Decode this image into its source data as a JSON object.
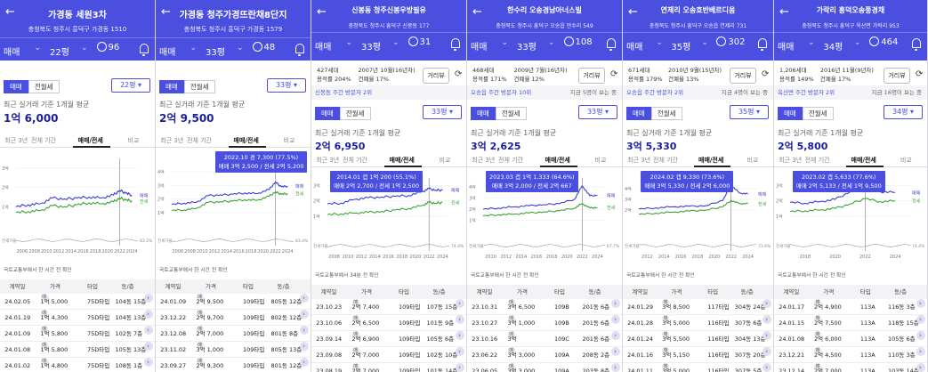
{
  "panels": [
    {
      "title": "가경동 세원3차",
      "address": "충청북도 청주시 흥덕구 가경동 1510",
      "trade_type": "매매",
      "size": "22평",
      "comments": "96",
      "info1": "",
      "info2": "",
      "visit_text": "",
      "toggle_sale": "매매",
      "toggle_jeonse": "전월세",
      "pyeong_select": "22평",
      "price_label": "최근 실거래 기준 1개월 평균",
      "avg_price": "1억 6,000",
      "tabs": [
        "최근 3년",
        "전체 기간",
        "매매/전세",
        "비교"
      ],
      "tooltip_1": "",
      "tooltip_2": "",
      "source_note": "국토교통부에서 한 시간 전 확인",
      "table_header": [
        "계약일",
        "가격",
        "타입",
        "동/층"
      ],
      "rows": [
        [
          "24.02.05",
          "1억 5,000",
          "75D타입",
          "104동 15층"
        ],
        [
          "24.01.19",
          "1억 4,300",
          "75D타입",
          "104동 13층"
        ],
        [
          "24.01.09",
          "1억 5,800",
          "75D타입",
          "102동 7층"
        ],
        [
          "24.01.08",
          "1억 5,800",
          "75D타입",
          "105동 13층"
        ],
        [
          "24.01.02",
          "1억 4,800",
          "75D타입",
          "108동 1층"
        ]
      ],
      "y_ticks": [
        "3억",
        "2억",
        "1억"
      ],
      "x_ticks": [
        "2006",
        "2008",
        "2010",
        "2012",
        "2014",
        "2016",
        "2018",
        "2020",
        "2022",
        "2024"
      ],
      "chart_data": {
        "type": "line",
        "x": [
          2005,
          2007,
          2009,
          2011,
          2013,
          2015,
          2017,
          2019,
          2021,
          2022,
          2023,
          2024
        ],
        "series": [
          {
            "name": "매매",
            "values": [
              1.0,
              1.1,
              1.15,
              1.45,
              1.4,
              1.45,
              1.5,
              1.45,
              1.6,
              1.85,
              1.7,
              1.6
            ]
          },
          {
            "name": "전세",
            "values": [
              0.7,
              0.75,
              0.8,
              1.05,
              1.0,
              1.1,
              1.2,
              1.15,
              1.25,
              1.45,
              1.35,
              1.3
            ]
          }
        ],
        "ylim": [
          0,
          3.5
        ],
        "xlim": [
          2005,
          2025
        ]
      },
      "ratio_label": "전세가율",
      "ratio_value": "83.2%"
    },
    {
      "title": "가경동 청주가경뜨란채8단지",
      "address": "충청북도 청주시 흥덕구 가경동 1579",
      "trade_type": "매매",
      "size": "33평",
      "comments": "48",
      "info1": "",
      "info2": "",
      "visit_text": "",
      "toggle_sale": "매매",
      "toggle_jeonse": "전월세",
      "pyeong_select": "33평",
      "price_label": "최근 실거래 기준 1개월 평균",
      "avg_price": "2억 9,500",
      "tabs": [
        "최근 3년",
        "전체 기간",
        "매매/전세",
        "비교"
      ],
      "tooltip_1": "2022.10 경 7,300 (77.5%)",
      "tooltip_2": "매매 3억 2,500 / 전세 2억 5,200",
      "source_note": "국토교통부에서 한 시간 전 확인",
      "table_header": [
        "계약일",
        "가격",
        "타입",
        "동/층"
      ],
      "rows": [
        [
          "24.01.09",
          "2억 9,500",
          "109타입",
          "805동 12층"
        ],
        [
          "23.12.22",
          "2억 9,700",
          "109타입",
          "802동 12층"
        ],
        [
          "23.12.08",
          "2억 7,000",
          "109타입",
          "801동 8층"
        ],
        [
          "23.11.02",
          "3억 1,000",
          "109타입",
          "805동 13층"
        ],
        [
          "23.09.27",
          "2억 9,300",
          "109타입",
          "801동 12층"
        ]
      ],
      "y_ticks": [
        "4억",
        "3억",
        "2억",
        "1억"
      ],
      "x_ticks": [
        "2006",
        "2008",
        "2010",
        "2012",
        "2014",
        "2016",
        "2018",
        "2020",
        "2022",
        "2024"
      ],
      "chart_data": {
        "type": "line",
        "x": [
          2005,
          2007,
          2009,
          2011,
          2013,
          2015,
          2017,
          2019,
          2021,
          2022,
          2023,
          2024
        ],
        "series": [
          {
            "name": "매매",
            "values": [
              1.6,
              1.7,
              1.75,
              2.25,
              2.3,
              2.35,
              2.45,
              2.4,
              2.7,
              3.25,
              2.9,
              2.95
            ]
          },
          {
            "name": "전세",
            "values": [
              1.15,
              1.2,
              1.3,
              1.75,
              1.8,
              1.85,
              1.95,
              1.9,
              2.2,
              2.52,
              2.35,
              2.4
            ]
          }
        ],
        "ylim": [
          0,
          5
        ],
        "xlim": [
          2005,
          2025
        ]
      },
      "ratio_label": "전세가율",
      "ratio_value": "83.4%"
    },
    {
      "title": "신봉동 청주신봉우방필유",
      "address": "충청북도 청주시 흥덕구 신봉동 177",
      "trade_type": "매매",
      "size": "33평",
      "comments": "31",
      "info1": "427세대",
      "info2": "용적률 204%",
      "info3": "2007년 10월(16년차)",
      "info4": "건폐율 17%",
      "visit_text": "신봉동 주간 방문자 2위",
      "toggle_sale": "매매",
      "toggle_jeonse": "전월세",
      "pyeong_select": "33평",
      "price_label": "최근 실거래 기준 1개월 평균",
      "avg_price": "2억 6,950",
      "tabs": [
        "최근 3년",
        "전체 기간",
        "매매/전세",
        "비교"
      ],
      "tooltip_1": "2014.01 갭 1억 200 (55.1%)",
      "tooltip_2": "매매 2억 2,700 / 전세 1억 2,500",
      "source_note": "국토교통부에서 34분 전 확인",
      "table_header": [
        "계약일",
        "가격",
        "타입",
        "동/층"
      ],
      "rows": [
        [
          "23.10.23",
          "2억 7,400",
          "109타입",
          "107동 15층"
        ],
        [
          "23.10.06",
          "2억 6,500",
          "109타입",
          "101동 9층"
        ],
        [
          "23.09.14",
          "2억 6,900",
          "109타입",
          "105동 6층"
        ],
        [
          "23.09.08",
          "2억 7,000",
          "109타입",
          "102동 10층"
        ],
        [
          "23.08.19",
          "2억 7,000",
          "109타입",
          "101동 14층"
        ]
      ],
      "y_ticks": [
        "3억",
        "2억",
        "1억"
      ],
      "x_ticks": [
        "2008",
        "2010",
        "2012",
        "2014",
        "2016",
        "2018",
        "2020",
        "2022",
        "2024"
      ],
      "chart_data": {
        "type": "line",
        "x": [
          2007,
          2009,
          2011,
          2013,
          2015,
          2017,
          2019,
          2021,
          2022,
          2023,
          2024
        ],
        "series": [
          {
            "name": "매매",
            "values": [
              1.8,
              1.85,
              2.1,
              2.2,
              2.25,
              2.3,
              2.35,
              2.6,
              2.8,
              2.7,
              2.7
            ]
          },
          {
            "name": "전세",
            "values": [
              1.1,
              1.15,
              1.2,
              1.25,
              1.3,
              1.4,
              1.5,
              1.7,
              1.9,
              1.85,
              1.9
            ]
          }
        ],
        "ylim": [
          0,
          3.5
        ],
        "xlim": [
          2007,
          2025
        ]
      },
      "ratio_label": "전세가율",
      "ratio_value": "74.4%"
    },
    {
      "title": "한수리 오송경남아너스빌",
      "address": "충청북도 청주시 흥덕구 오송읍 만수리 549",
      "trade_type": "매매",
      "size": "33평",
      "comments": "108",
      "info1": "468세대",
      "info2": "용적률 171%",
      "info3": "2009년 7월(16년차)",
      "info4": "건폐율 12%",
      "visit_text": "오송읍 주간 방문자 10위",
      "visit_more": "지금 5명이 보는 중",
      "toggle_sale": "매매",
      "toggle_jeonse": "전월세",
      "pyeong_select": "33평",
      "price_label": "최근 실거래 기준 1개월 평균",
      "avg_price": "3억 2,625",
      "tabs": [
        "최근 3년",
        "전체 기간",
        "매매/전세",
        "비교"
      ],
      "tooltip_1": "2023.03 갭 1억 1,333 (64.6%)",
      "tooltip_2": "매매 3억 2,000 / 전세 2억 667",
      "source_note": "국토교통부에서 한 시간 전 확인",
      "table_header": [
        "계약일",
        "가격",
        "타입",
        "동/층"
      ],
      "rows": [
        [
          "23.10.31",
          "3억 6,500",
          "109B",
          "201동 6층"
        ],
        [
          "23.10.27",
          "3억 1,000",
          "109B",
          "201동 6층"
        ],
        [
          "23.10.16",
          "3억",
          "109C",
          "201동 6층"
        ],
        [
          "23.06.22",
          "3억 3,000",
          "109A",
          "208동 2층"
        ],
        [
          "23.06.05",
          "3억 3,000",
          "109A",
          "203동 8층"
        ]
      ],
      "y_ticks": [
        "4억",
        "3억",
        "2억",
        "1억"
      ],
      "x_ticks": [
        "2010",
        "2012",
        "2014",
        "2016",
        "2018",
        "2020",
        "2022",
        "2024"
      ],
      "chart_data": {
        "type": "line",
        "x": [
          2009,
          2011,
          2013,
          2015,
          2017,
          2019,
          2021,
          2022,
          2023,
          2024
        ],
        "series": [
          {
            "name": "매매",
            "values": [
              2.0,
              2.1,
              2.2,
              2.3,
              2.4,
              2.5,
              2.9,
              4.1,
              3.2,
              3.25
            ]
          },
          {
            "name": "전세",
            "values": [
              1.4,
              1.5,
              1.55,
              1.65,
              1.75,
              1.85,
              2.1,
              2.5,
              2.1,
              2.15
            ]
          }
        ],
        "ylim": [
          0,
          4.8
        ],
        "xlim": [
          2009,
          2025
        ]
      },
      "ratio_label": "전세가율",
      "ratio_value": "67.7%"
    },
    {
      "title": "연제리 오송호반베르디움",
      "address": "충청북도 청주시 흥덕구 오송읍 연제리 731",
      "trade_type": "매매",
      "size": "35평",
      "comments": "302",
      "info1": "671세대",
      "info2": "용적률 179%",
      "info3": "2010년 9월(15년차)",
      "info4": "건폐율 13%",
      "visit_text": "오송읍 주간 방문자 2위",
      "visit_more": "지금 4명이 보는 중",
      "toggle_sale": "매매",
      "toggle_jeonse": "전월세",
      "pyeong_select": "35평",
      "price_label": "최근 실거래 기준 1개월 평균",
      "avg_price": "3억 5,330",
      "tabs": [
        "최근 3년",
        "전체 기간",
        "매매/전세",
        "비교"
      ],
      "tooltip_1": "2024.02 갭 9,330 (73.6%)",
      "tooltip_2": "매매 3억 5,330 / 전세 2억 6,000",
      "source_note": "국토교통부에서 한 시간 전 확인",
      "table_header": [
        "계약일",
        "가격",
        "타입",
        "동/층"
      ],
      "rows": [
        [
          "24.01.29",
          "3억 8,500",
          "117타입",
          "304동 24층"
        ],
        [
          "24.01.28",
          "3억 5,000",
          "116타입",
          "307동 6층"
        ],
        [
          "24.01.24",
          "3억 5,500",
          "116타입",
          "304동 13층"
        ],
        [
          "24.01.16",
          "3억 5,150",
          "116타입",
          "307동 20층"
        ],
        [
          "24.01.11",
          "3억 5,000",
          "116타입",
          "307동 5층"
        ]
      ],
      "y_ticks": [
        "4억",
        "3억",
        "2억"
      ],
      "x_ticks": [
        "2012",
        "2014",
        "2016",
        "2018",
        "2020",
        "2022",
        "2024"
      ],
      "chart_data": {
        "type": "line",
        "x": [
          2011,
          2013,
          2015,
          2017,
          2019,
          2021,
          2022,
          2023,
          2024
        ],
        "series": [
          {
            "name": "매매",
            "values": [
              2.1,
              2.2,
              2.3,
              2.35,
              2.4,
              2.9,
              4.3,
              3.6,
              3.5
            ]
          },
          {
            "name": "전세",
            "values": [
              1.6,
              1.7,
              1.8,
              1.9,
              2.0,
              2.3,
              2.9,
              2.6,
              2.6
            ]
          }
        ],
        "ylim": [
          0,
          5
        ],
        "xlim": [
          2011,
          2025
        ]
      },
      "ratio_label": "전세가율",
      "ratio_value": "73.6%"
    },
    {
      "title": "가락리 흥덕오송풍경채",
      "address": "충청북도 청주시 흥덕구 옥산면 가락리 953",
      "trade_type": "매매",
      "size": "34평",
      "comments": "464",
      "info1": "1,206세대",
      "info2": "용적률 149%",
      "info3": "2016년 11월(9년차)",
      "info4": "건폐율 17%",
      "visit_text": "옥산면 주간 방문자 2위",
      "visit_more": "지금 16명이 보는 중",
      "toggle_sale": "매매",
      "toggle_jeonse": "전월세",
      "pyeong_select": "34평",
      "price_label": "최근 실거래 기준 1개월 평균",
      "avg_price": "2억 5,800",
      "tabs": [
        "최근 3년",
        "전체 기간",
        "매매/전세",
        "비교"
      ],
      "tooltip_1": "2023.02 갭 5,633 (77.6%)",
      "tooltip_2": "매매 2억 5,133 / 전세 1억 9,500",
      "source_note": "국토교통부에서 한 시간 전 확인",
      "table_header": [
        "계약일",
        "가격",
        "타입",
        "동/층"
      ],
      "rows": [
        [
          "24.01.17",
          "2억 4,900",
          "113A",
          "116동 3층"
        ],
        [
          "24.01.15",
          "2억 7,500",
          "113A",
          "118동 15층"
        ],
        [
          "24.01.08",
          "2억 6,000",
          "113A",
          "105동 6층"
        ],
        [
          "23.12.21",
          "2억 4,500",
          "113A",
          "110동 3층"
        ],
        [
          "23.12.14",
          "2억 7,000",
          "113A",
          "103동 14층"
        ]
      ],
      "y_ticks": [
        "3억",
        "2억",
        "1억"
      ],
      "x_ticks": [
        "2018",
        "2020",
        "2022",
        "2024"
      ],
      "chart_data": {
        "type": "line",
        "x": [
          2017,
          2018,
          2019,
          2020,
          2021,
          2022,
          2023,
          2024
        ],
        "series": [
          {
            "name": "매매",
            "values": [
              1.9,
              1.85,
              1.95,
              2.1,
              2.6,
              3.2,
              2.6,
              2.55
            ]
          },
          {
            "name": "전세",
            "values": [
              1.3,
              1.35,
              1.4,
              1.5,
              1.8,
              2.15,
              1.95,
              2.0
            ]
          }
        ],
        "ylim": [
          0,
          3.5
        ],
        "xlim": [
          2017,
          2025
        ]
      },
      "ratio_label": "전세가율",
      "ratio_value": "74.4%"
    }
  ],
  "series_labels": [
    "매매",
    "전세"
  ],
  "colors": {
    "header": "#4a4fe0",
    "sale_line": "#3b3fd8",
    "jeonse_line": "#3aa33a",
    "price_text": "#1a1f9c",
    "ratio_line": "#9a9a9a"
  },
  "icons": {
    "back": "back-arrow-icon",
    "comment": "comment-bubble-icon",
    "bell": "bell-icon",
    "share": "share-icon",
    "dropdown": "chevron-down-icon"
  }
}
